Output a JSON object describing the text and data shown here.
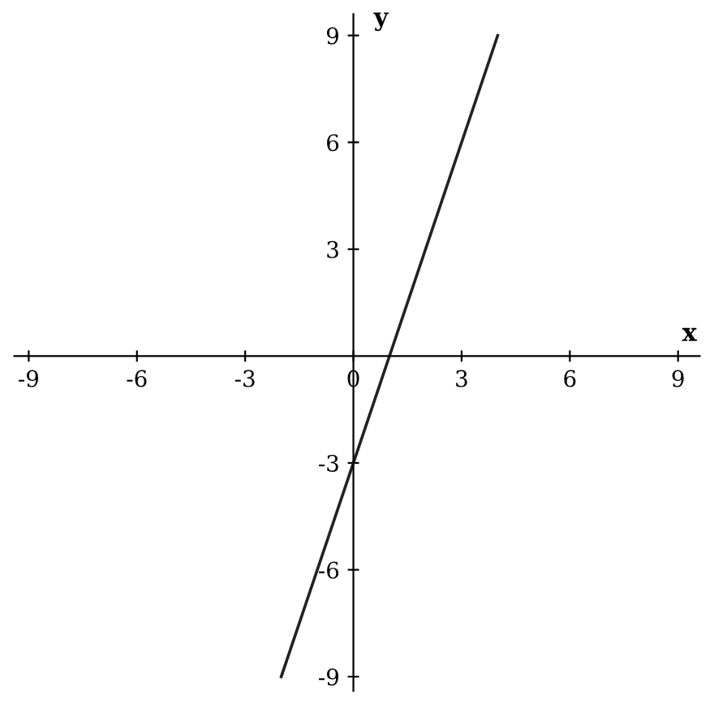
{
  "chart_data": {
    "type": "line",
    "xlabel": "x",
    "ylabel": "y",
    "x": [
      -2,
      4
    ],
    "series": [
      {
        "color": "#222222",
        "values": [
          -9,
          9
        ]
      }
    ],
    "xlim": [
      -9.4,
      9.6
    ],
    "ylim": [
      -9.4,
      9.6
    ],
    "xticks": [
      -9,
      -6,
      -3,
      0,
      3,
      6,
      9
    ],
    "yticks": [
      -9,
      -6,
      -3,
      3,
      6,
      9
    ],
    "grid": false,
    "legend": false,
    "marker": "none",
    "line_style": "solid"
  }
}
